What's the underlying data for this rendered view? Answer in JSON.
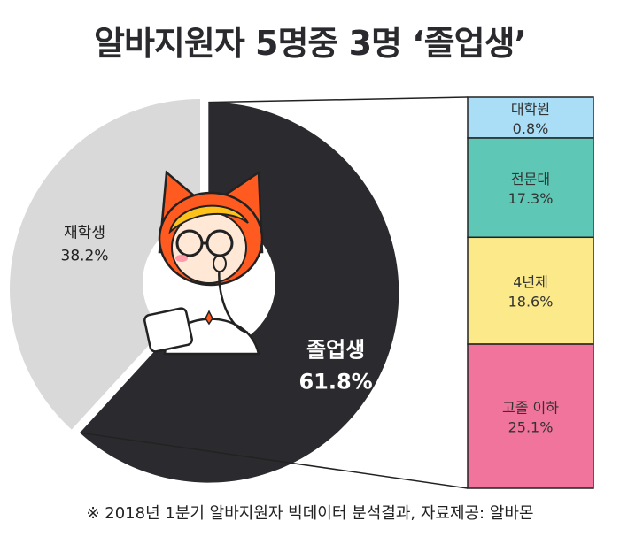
{
  "title": "알바지원자 5명중 3명 ‘졸업생’",
  "footnote": "※ 2018년 1분기 알바지원자 빅데이터 분석결과,  자료제공: 알바몬",
  "icons": {
    "mascot": "fox-mascot-icon"
  },
  "chart_data": [
    {
      "type": "pie",
      "slices": [
        {
          "label": "졸업생",
          "value": 61.8,
          "value_text": "61.8%",
          "color": "#2b2b2f",
          "label_color": "#ffffff"
        },
        {
          "label": "재학생",
          "value": 38.2,
          "value_text": "38.2%",
          "color": "#d9d9d9",
          "label_color": "#222222"
        }
      ],
      "exploded_slice": "졸업생"
    },
    {
      "type": "bar",
      "stacked": true,
      "breakdown_of": "졸업생",
      "segments": [
        {
          "label": "대학원",
          "value": 0.8,
          "value_text": "0.8%",
          "color": "#a9def6"
        },
        {
          "label": "전문대",
          "value": 17.3,
          "value_text": "17.3%",
          "color": "#5ec7b6"
        },
        {
          "label": "4년제",
          "value": 18.6,
          "value_text": "18.6%",
          "color": "#fbe98a"
        },
        {
          "label": "고졸 이하",
          "value": 25.1,
          "value_text": "25.1%",
          "color": "#f0749b"
        }
      ]
    }
  ]
}
